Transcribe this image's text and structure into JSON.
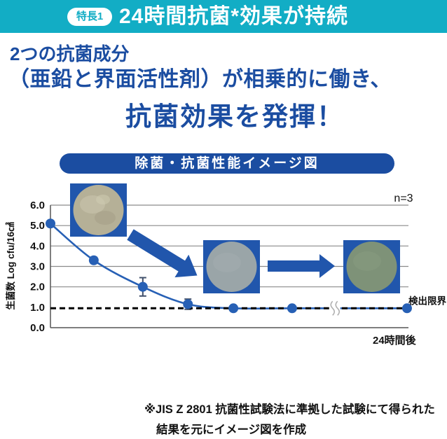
{
  "header": {
    "badge": "特長1",
    "title": "24時間抗菌*効果が持続"
  },
  "headline": {
    "line1": "2つの抗菌成分",
    "line2": "（亜鉛と界面活性剤）が相乗的に働き、",
    "line3": "抗菌効果を発揮！"
  },
  "chart_banner": "除菌・抗菌性能イメージ図",
  "chart_data": {
    "type": "line",
    "title": "除菌・抗菌性能イメージ図",
    "ylabel": "生菌数 Log cfu/16㎠",
    "ylim": [
      0,
      6
    ],
    "ytick_labels": [
      "6.0",
      "5.0",
      "4.0",
      "3.0",
      "2.0",
      "1.0",
      "0.0"
    ],
    "ytick_values": [
      6,
      5,
      4,
      3,
      2,
      1,
      0
    ],
    "grid_values": [
      6,
      5,
      4,
      3,
      2
    ],
    "grid": true,
    "legend": "none",
    "series": [
      {
        "name": "生菌数",
        "x_frac": [
          0,
          0.121,
          0.258,
          0.384,
          0.511,
          0.675,
          0.996
        ],
        "values": [
          5.1,
          3.3,
          2.0,
          1.15,
          0.95,
          0.95,
          0.95
        ],
        "errors": [
          0,
          0.15,
          0.45,
          0.25,
          0,
          0,
          0
        ]
      }
    ],
    "detection_limit": {
      "value": 0.95,
      "label": "検出限界"
    },
    "axis_break_frac": 0.794,
    "x_end_label": "24時間後",
    "sample_label": "n=3"
  },
  "footnote": {
    "line1": "※JIS Z 2801 抗菌性試験法に準拠した試験にて得られた",
    "line2": "結果を元にイメージ図を作成"
  },
  "colors": {
    "banner_cyan": "#12adc5",
    "deep_blue": "#1b4da1",
    "chart_blue": "#2760b5",
    "square_blue": "#2156ac",
    "detection_line": "#000000",
    "petri1": "#b5b097",
    "petri2": "#9aa5a8",
    "petri3": "#7e9278"
  }
}
